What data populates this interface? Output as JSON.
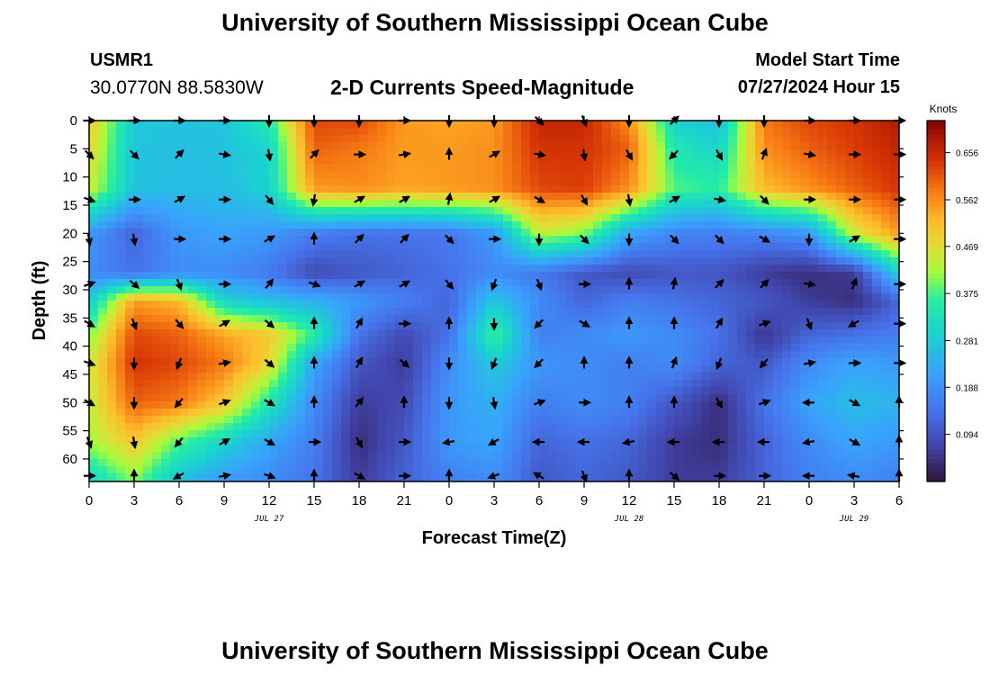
{
  "header": {
    "title": "University of Southern Mississippi Ocean Cube",
    "station_id": "USMR1",
    "coords": "30.0770N  88.5830W",
    "plot_title": "2-D Currents Speed-Magnitude",
    "model_start_label": "Model Start Time",
    "model_start_value": "07/27/2024 Hour 15"
  },
  "footer": {
    "title": "University of Southern Mississippi Ocean Cube"
  },
  "chart_data": {
    "type": "heatmap",
    "xlabel": "Forecast Time(Z)",
    "ylabel": "Depth (ft)",
    "x_tick_labels": [
      "0",
      "3",
      "6",
      "9",
      "12",
      "15",
      "18",
      "21",
      "0",
      "3",
      "6",
      "9",
      "12",
      "15",
      "18",
      "21",
      "0",
      "3",
      "6"
    ],
    "date_labels": [
      {
        "text": "JUL 27",
        "tick_index": 4
      },
      {
        "text": "JUL 28",
        "tick_index": 12
      },
      {
        "text": "JUL 29",
        "tick_index": 17
      }
    ],
    "y_tick_labels": [
      "0",
      "5",
      "10",
      "15",
      "20",
      "25",
      "30",
      "35",
      "40",
      "45",
      "50",
      "55",
      "60"
    ],
    "ylim": [
      0,
      64
    ],
    "colorbar": {
      "title": "Knots",
      "labels": [
        "0.656",
        "0.562",
        "0.469",
        "0.375",
        "0.281",
        "0.188",
        "0.094"
      ],
      "label_values": [
        0.656,
        0.562,
        0.469,
        0.375,
        0.281,
        0.188,
        0.094
      ],
      "range": [
        0.0,
        0.72
      ]
    },
    "arrow_depths": [
      0,
      6,
      14,
      21,
      29,
      36,
      43,
      50,
      57,
      63
    ],
    "arrow_columns_hours": [
      0,
      3,
      6,
      9,
      12,
      15,
      18,
      21,
      24,
      27,
      30,
      33,
      36,
      39,
      42,
      45,
      48,
      51,
      54
    ],
    "speed_grid": [
      [
        0.5,
        0.28,
        0.27,
        0.27,
        0.35,
        0.62,
        0.62,
        0.55,
        0.54,
        0.55,
        0.66,
        0.66,
        0.56,
        0.3,
        0.26,
        0.58,
        0.62,
        0.64,
        0.68
      ],
      [
        0.48,
        0.27,
        0.26,
        0.27,
        0.3,
        0.6,
        0.58,
        0.55,
        0.55,
        0.56,
        0.64,
        0.64,
        0.6,
        0.34,
        0.3,
        0.56,
        0.6,
        0.63,
        0.66
      ],
      [
        0.45,
        0.27,
        0.26,
        0.26,
        0.3,
        0.55,
        0.56,
        0.54,
        0.55,
        0.56,
        0.62,
        0.63,
        0.56,
        0.38,
        0.36,
        0.52,
        0.56,
        0.6,
        0.64
      ],
      [
        0.2,
        0.12,
        0.2,
        0.22,
        0.2,
        0.16,
        0.14,
        0.14,
        0.15,
        0.2,
        0.44,
        0.4,
        0.22,
        0.17,
        0.16,
        0.17,
        0.2,
        0.45,
        0.55
      ],
      [
        0.18,
        0.14,
        0.18,
        0.18,
        0.15,
        0.08,
        0.1,
        0.12,
        0.14,
        0.18,
        0.15,
        0.1,
        0.08,
        0.1,
        0.1,
        0.06,
        0.04,
        0.06,
        0.3
      ],
      [
        0.28,
        0.55,
        0.52,
        0.3,
        0.26,
        0.24,
        0.2,
        0.16,
        0.12,
        0.28,
        0.18,
        0.12,
        0.16,
        0.14,
        0.12,
        0.1,
        0.06,
        0.04,
        0.12
      ],
      [
        0.4,
        0.62,
        0.6,
        0.54,
        0.5,
        0.36,
        0.14,
        0.08,
        0.14,
        0.38,
        0.16,
        0.18,
        0.2,
        0.18,
        0.14,
        0.05,
        0.12,
        0.14,
        0.16
      ],
      [
        0.45,
        0.64,
        0.62,
        0.58,
        0.48,
        0.22,
        0.1,
        0.06,
        0.18,
        0.28,
        0.2,
        0.18,
        0.16,
        0.18,
        0.12,
        0.1,
        0.18,
        0.22,
        0.2
      ],
      [
        0.44,
        0.6,
        0.58,
        0.5,
        0.34,
        0.18,
        0.06,
        0.08,
        0.2,
        0.24,
        0.16,
        0.18,
        0.16,
        0.1,
        0.04,
        0.14,
        0.22,
        0.26,
        0.24
      ],
      [
        0.42,
        0.5,
        0.38,
        0.3,
        0.22,
        0.16,
        0.04,
        0.1,
        0.2,
        0.22,
        0.12,
        0.14,
        0.12,
        0.06,
        0.04,
        0.12,
        0.18,
        0.22,
        0.2
      ],
      [
        0.3,
        0.4,
        0.26,
        0.2,
        0.18,
        0.14,
        0.06,
        0.12,
        0.16,
        0.18,
        0.1,
        0.12,
        0.1,
        0.06,
        0.06,
        0.12,
        0.16,
        0.18,
        0.16
      ]
    ],
    "speed_grid_depths": [
      0,
      5,
      12,
      20,
      27,
      32,
      38,
      43,
      50,
      57,
      64
    ],
    "arrow_directions_deg": [
      [
        90,
        90,
        90,
        90,
        180,
        180,
        180,
        90,
        180,
        180,
        135,
        160,
        180,
        45,
        180,
        180,
        90,
        90,
        90
      ],
      [
        135,
        135,
        45,
        100,
        170,
        45,
        90,
        80,
        0,
        60,
        100,
        170,
        150,
        225,
        150,
        20,
        100,
        90,
        90
      ],
      [
        110,
        90,
        60,
        90,
        140,
        190,
        60,
        60,
        10,
        60,
        120,
        150,
        170,
        60,
        100,
        135,
        90,
        90,
        90
      ],
      [
        170,
        170,
        90,
        90,
        60,
        0,
        45,
        45,
        135,
        90,
        180,
        135,
        180,
        135,
        135,
        120,
        180,
        60,
        90
      ],
      [
        70,
        130,
        160,
        90,
        40,
        110,
        60,
        60,
        140,
        200,
        160,
        90,
        0,
        10,
        45,
        45,
        100,
        20,
        90
      ],
      [
        120,
        160,
        140,
        60,
        130,
        0,
        30,
        90,
        0,
        180,
        225,
        120,
        0,
        0,
        30,
        70,
        160,
        240,
        90
      ],
      [
        110,
        180,
        200,
        80,
        130,
        0,
        30,
        130,
        180,
        200,
        225,
        0,
        0,
        20,
        200,
        220,
        80,
        90,
        90
      ],
      [
        120,
        180,
        220,
        70,
        120,
        0,
        40,
        0,
        180,
        170,
        70,
        90,
        0,
        0,
        150,
        70,
        270,
        120,
        0
      ],
      [
        160,
        170,
        220,
        60,
        120,
        90,
        150,
        90,
        260,
        240,
        270,
        270,
        260,
        270,
        270,
        270,
        260,
        120,
        0
      ],
      [
        90,
        0,
        240,
        80,
        110,
        0,
        120,
        90,
        0,
        250,
        300,
        160,
        0,
        130,
        90,
        90,
        270,
        280,
        0
      ]
    ]
  }
}
